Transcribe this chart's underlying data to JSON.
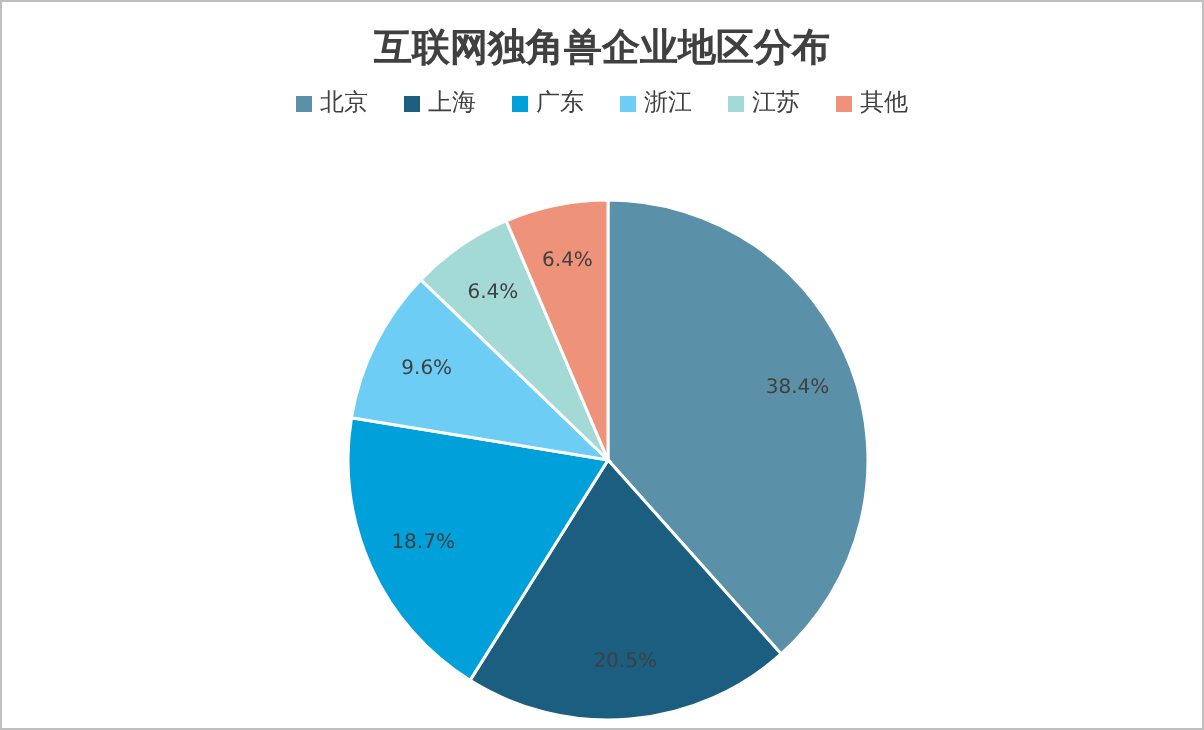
{
  "chart_data": {
    "type": "pie",
    "title": "互联网独角兽企业地区分布",
    "categories": [
      "北京",
      "上海",
      "广东",
      "浙江",
      "江苏",
      "其他"
    ],
    "values": [
      38.4,
      20.5,
      18.7,
      9.6,
      6.4,
      6.4
    ],
    "value_labels": [
      "38.4%",
      "20.5%",
      "18.7%",
      "9.6%",
      "6.4%",
      "6.4%"
    ],
    "colors": [
      "#5b91a8",
      "#1b5e80",
      "#00a0db",
      "#6dcdf5",
      "#a4dad6",
      "#ef927a"
    ],
    "legend": "top"
  }
}
